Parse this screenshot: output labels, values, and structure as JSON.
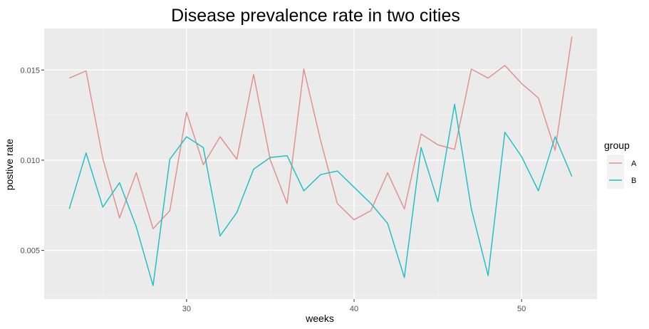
{
  "chart_data": {
    "type": "line",
    "title": "Disease prevalence rate in two cities",
    "xlabel": "weeks",
    "ylabel": "postive rate",
    "xlim": [
      21.5,
      54.5
    ],
    "ylim": [
      0.0023,
      0.0173
    ],
    "xticks": [
      30,
      40,
      50
    ],
    "yticks": [
      0.005,
      0.01,
      0.015
    ],
    "xtick_labels": [
      "30",
      "40",
      "50"
    ],
    "ytick_labels": [
      "0.005",
      "0.010",
      "0.015"
    ],
    "grid": true,
    "background": "#EBEBEB",
    "legend": {
      "title": "group",
      "position": "right"
    },
    "x": [
      23,
      24,
      25,
      26,
      27,
      28,
      29,
      30,
      31,
      32,
      33,
      34,
      35,
      36,
      37,
      38,
      39,
      40,
      41,
      42,
      43,
      44,
      45,
      46,
      47,
      48,
      49,
      50,
      51,
      52,
      53
    ],
    "series": [
      {
        "name": "A",
        "color": "#E0928B",
        "values": [
          0.01455,
          0.01495,
          0.0101,
          0.0068,
          0.0093,
          0.0062,
          0.0072,
          0.01265,
          0.00975,
          0.0113,
          0.01005,
          0.01475,
          0.01,
          0.0076,
          0.01505,
          0.0111,
          0.0076,
          0.0067,
          0.0072,
          0.0093,
          0.0073,
          0.01145,
          0.01085,
          0.0106,
          0.01505,
          0.01455,
          0.01525,
          0.01425,
          0.01345,
          0.01055,
          0.01685
        ]
      },
      {
        "name": "B",
        "color": "#25BFC4",
        "values": [
          0.0073,
          0.0104,
          0.0074,
          0.00875,
          0.0063,
          0.00305,
          0.01005,
          0.0113,
          0.0107,
          0.0058,
          0.0071,
          0.0095,
          0.01015,
          0.01025,
          0.0083,
          0.0092,
          0.0094,
          0.0085,
          0.0076,
          0.0065,
          0.0035,
          0.0107,
          0.0077,
          0.0131,
          0.0073,
          0.0036,
          0.01155,
          0.0102,
          0.0083,
          0.0113,
          0.0091
        ]
      }
    ]
  }
}
